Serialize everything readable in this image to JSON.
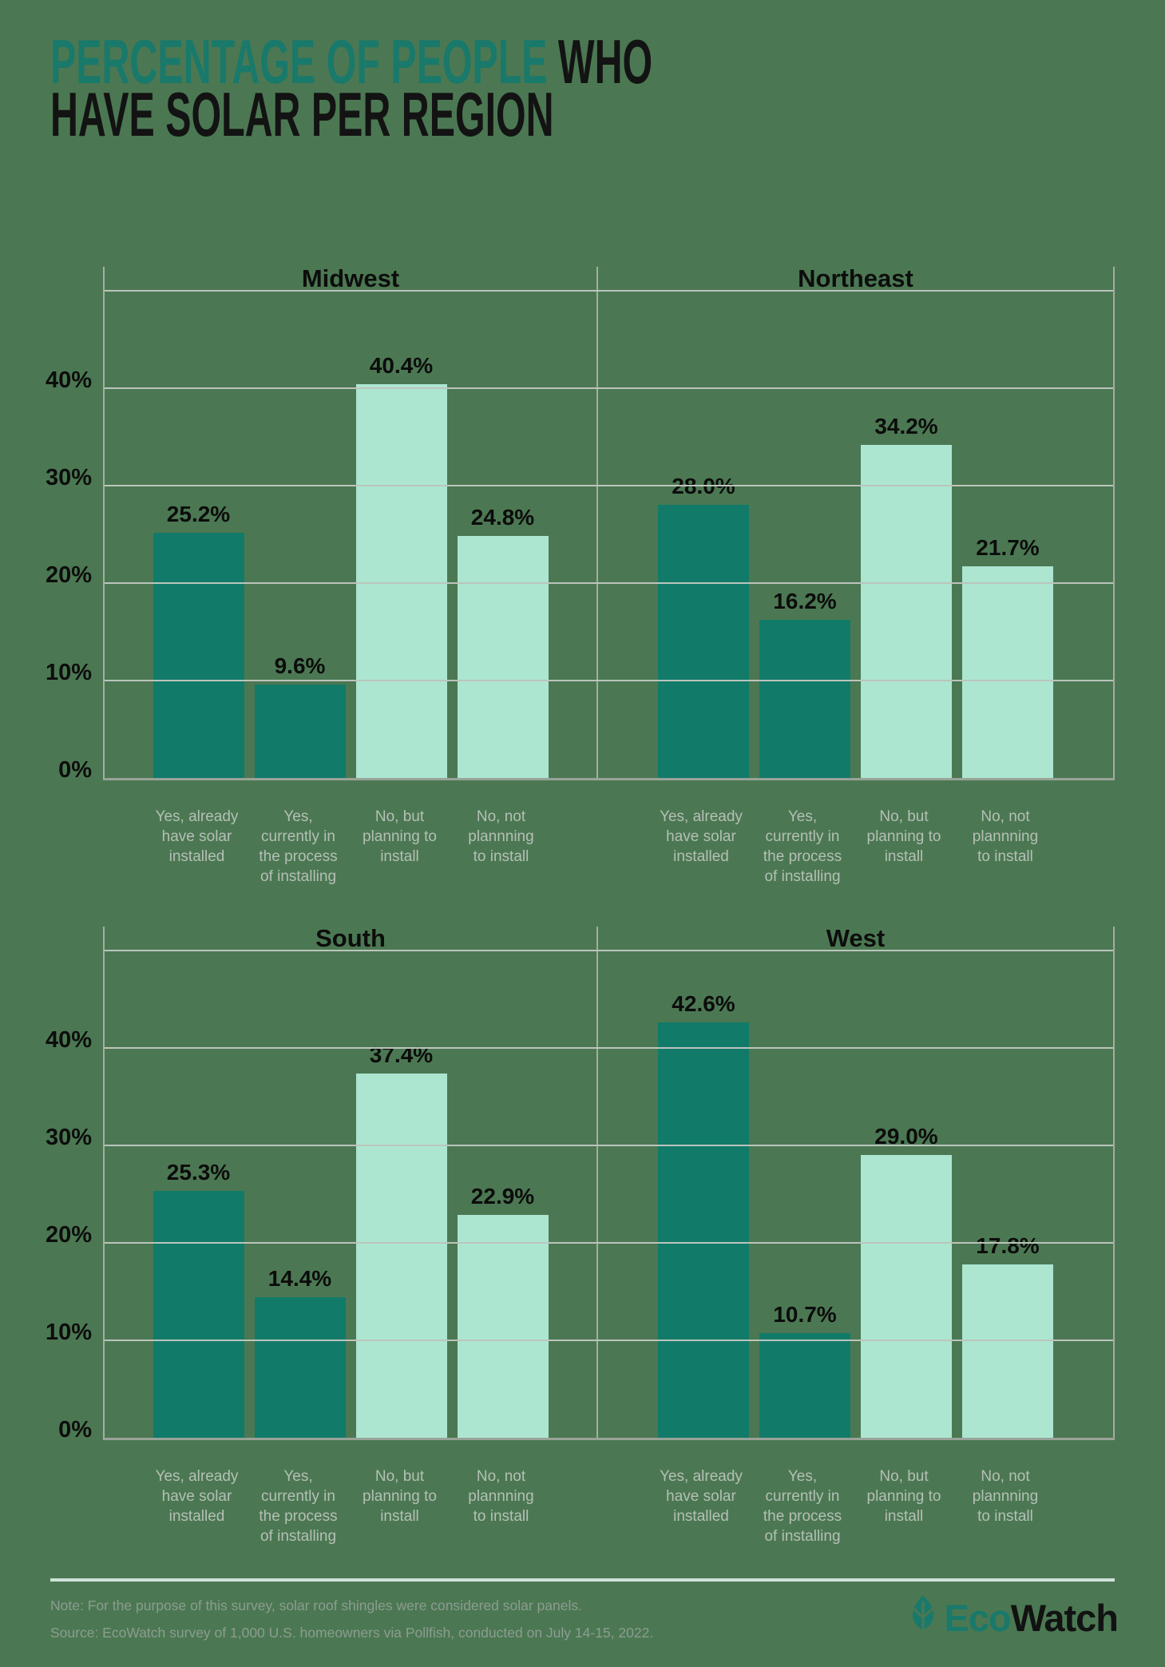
{
  "title": {
    "highlight": "PERCENTAGE OF PEOPLE",
    "rest_line1": " WHO",
    "line2": "HAVE SOLAR PER REGION"
  },
  "y_axis": {
    "labels": [
      "0%",
      "10%",
      "20%",
      "30%",
      "40%"
    ]
  },
  "categories": [
    [
      "Yes, already",
      "have solar",
      "installed"
    ],
    [
      "Yes,",
      "currently in",
      "the process",
      "of installing"
    ],
    [
      "No, but",
      "planning to",
      "install"
    ],
    [
      "No, not",
      "plannning",
      "to install"
    ]
  ],
  "chart_data": {
    "type": "bar",
    "title": "Percentage of people who have solar per region",
    "ylabel": "",
    "xlabel": "",
    "ylim": [
      0,
      52.5
    ],
    "grid": true,
    "gridlines_pct": [
      10,
      20,
      30,
      40,
      50
    ],
    "categories": [
      "Yes, already have solar installed",
      "Yes, currently in the process of installing",
      "No, but planning to install",
      "No, not plannning to install"
    ],
    "panels": [
      {
        "region": "Midwest",
        "values": [
          25.2,
          9.6,
          40.4,
          24.8
        ],
        "labels": [
          "25.2%",
          "9.6%",
          "40.4%",
          "24.8%"
        ]
      },
      {
        "region": "Northeast",
        "values": [
          28.0,
          16.2,
          34.2,
          21.7
        ],
        "labels": [
          "28.0%",
          "16.2%",
          "34.2%",
          "21.7%"
        ]
      },
      {
        "region": "South",
        "values": [
          25.3,
          14.4,
          37.4,
          22.9
        ],
        "labels": [
          "25.3%",
          "14.4%",
          "37.4%",
          "22.9%"
        ]
      },
      {
        "region": "West",
        "values": [
          42.6,
          10.7,
          29.0,
          17.8
        ],
        "labels": [
          "42.6%",
          "10.7%",
          "29.0%",
          "17.8%"
        ]
      }
    ],
    "series_colors": {
      "yes": "#127a69",
      "no": "#ace6d1"
    },
    "background_color": "#4b7852",
    "accent_color": "#19796b"
  },
  "footer": {
    "note": "Note: For the purpose of this survey, solar roof shingles were considered solar panels.",
    "source": "Source: EcoWatch survey of 1,000 U.S. homeowners via Pollfish, conducted on July 14-15, 2022.",
    "logo": {
      "eco": "Eco",
      "watch": "Watch"
    }
  }
}
